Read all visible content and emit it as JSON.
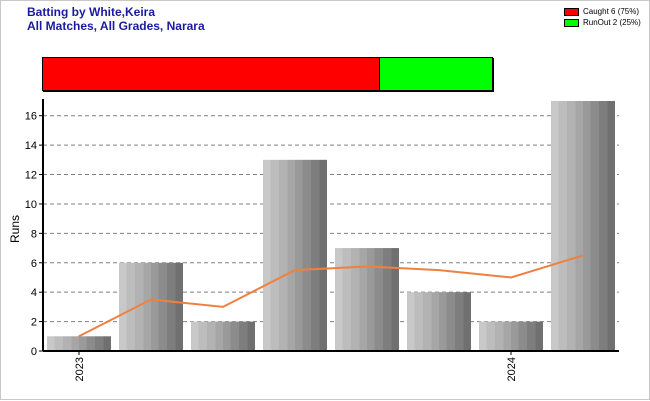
{
  "header": {
    "title_line1": "Batting by White,Keira",
    "title_line2": "All Matches, All Grades, Narara"
  },
  "legend": [
    {
      "label": "Caught 6 (75%)",
      "color": "#ff0000"
    },
    {
      "label": "RunOut 2 (25%)",
      "color": "#00ff00"
    }
  ],
  "dismissals": [
    {
      "name": "Caught",
      "count": 6,
      "percent": 75,
      "color": "#ff0000"
    },
    {
      "name": "RunOut",
      "count": 2,
      "percent": 25,
      "color": "#00ff00"
    }
  ],
  "chart_data": {
    "type": "bar",
    "ylabel": "Runs",
    "ylim": [
      0,
      17
    ],
    "yticks": [
      0,
      2,
      4,
      6,
      8,
      10,
      12,
      14,
      16
    ],
    "grid": true,
    "x_tick_labels": [
      {
        "index": 0,
        "label": "2023"
      },
      {
        "index": 6,
        "label": "2024"
      }
    ],
    "series": [
      {
        "values": [
          1,
          6,
          2,
          13,
          7,
          4,
          2,
          17
        ],
        "color": "#9a9a9a"
      },
      {
        "values": [
          1,
          3.5,
          3,
          5.5,
          5.75,
          5.5,
          5,
          6.5
        ],
        "color": "#f08040",
        "type": "line"
      }
    ]
  }
}
